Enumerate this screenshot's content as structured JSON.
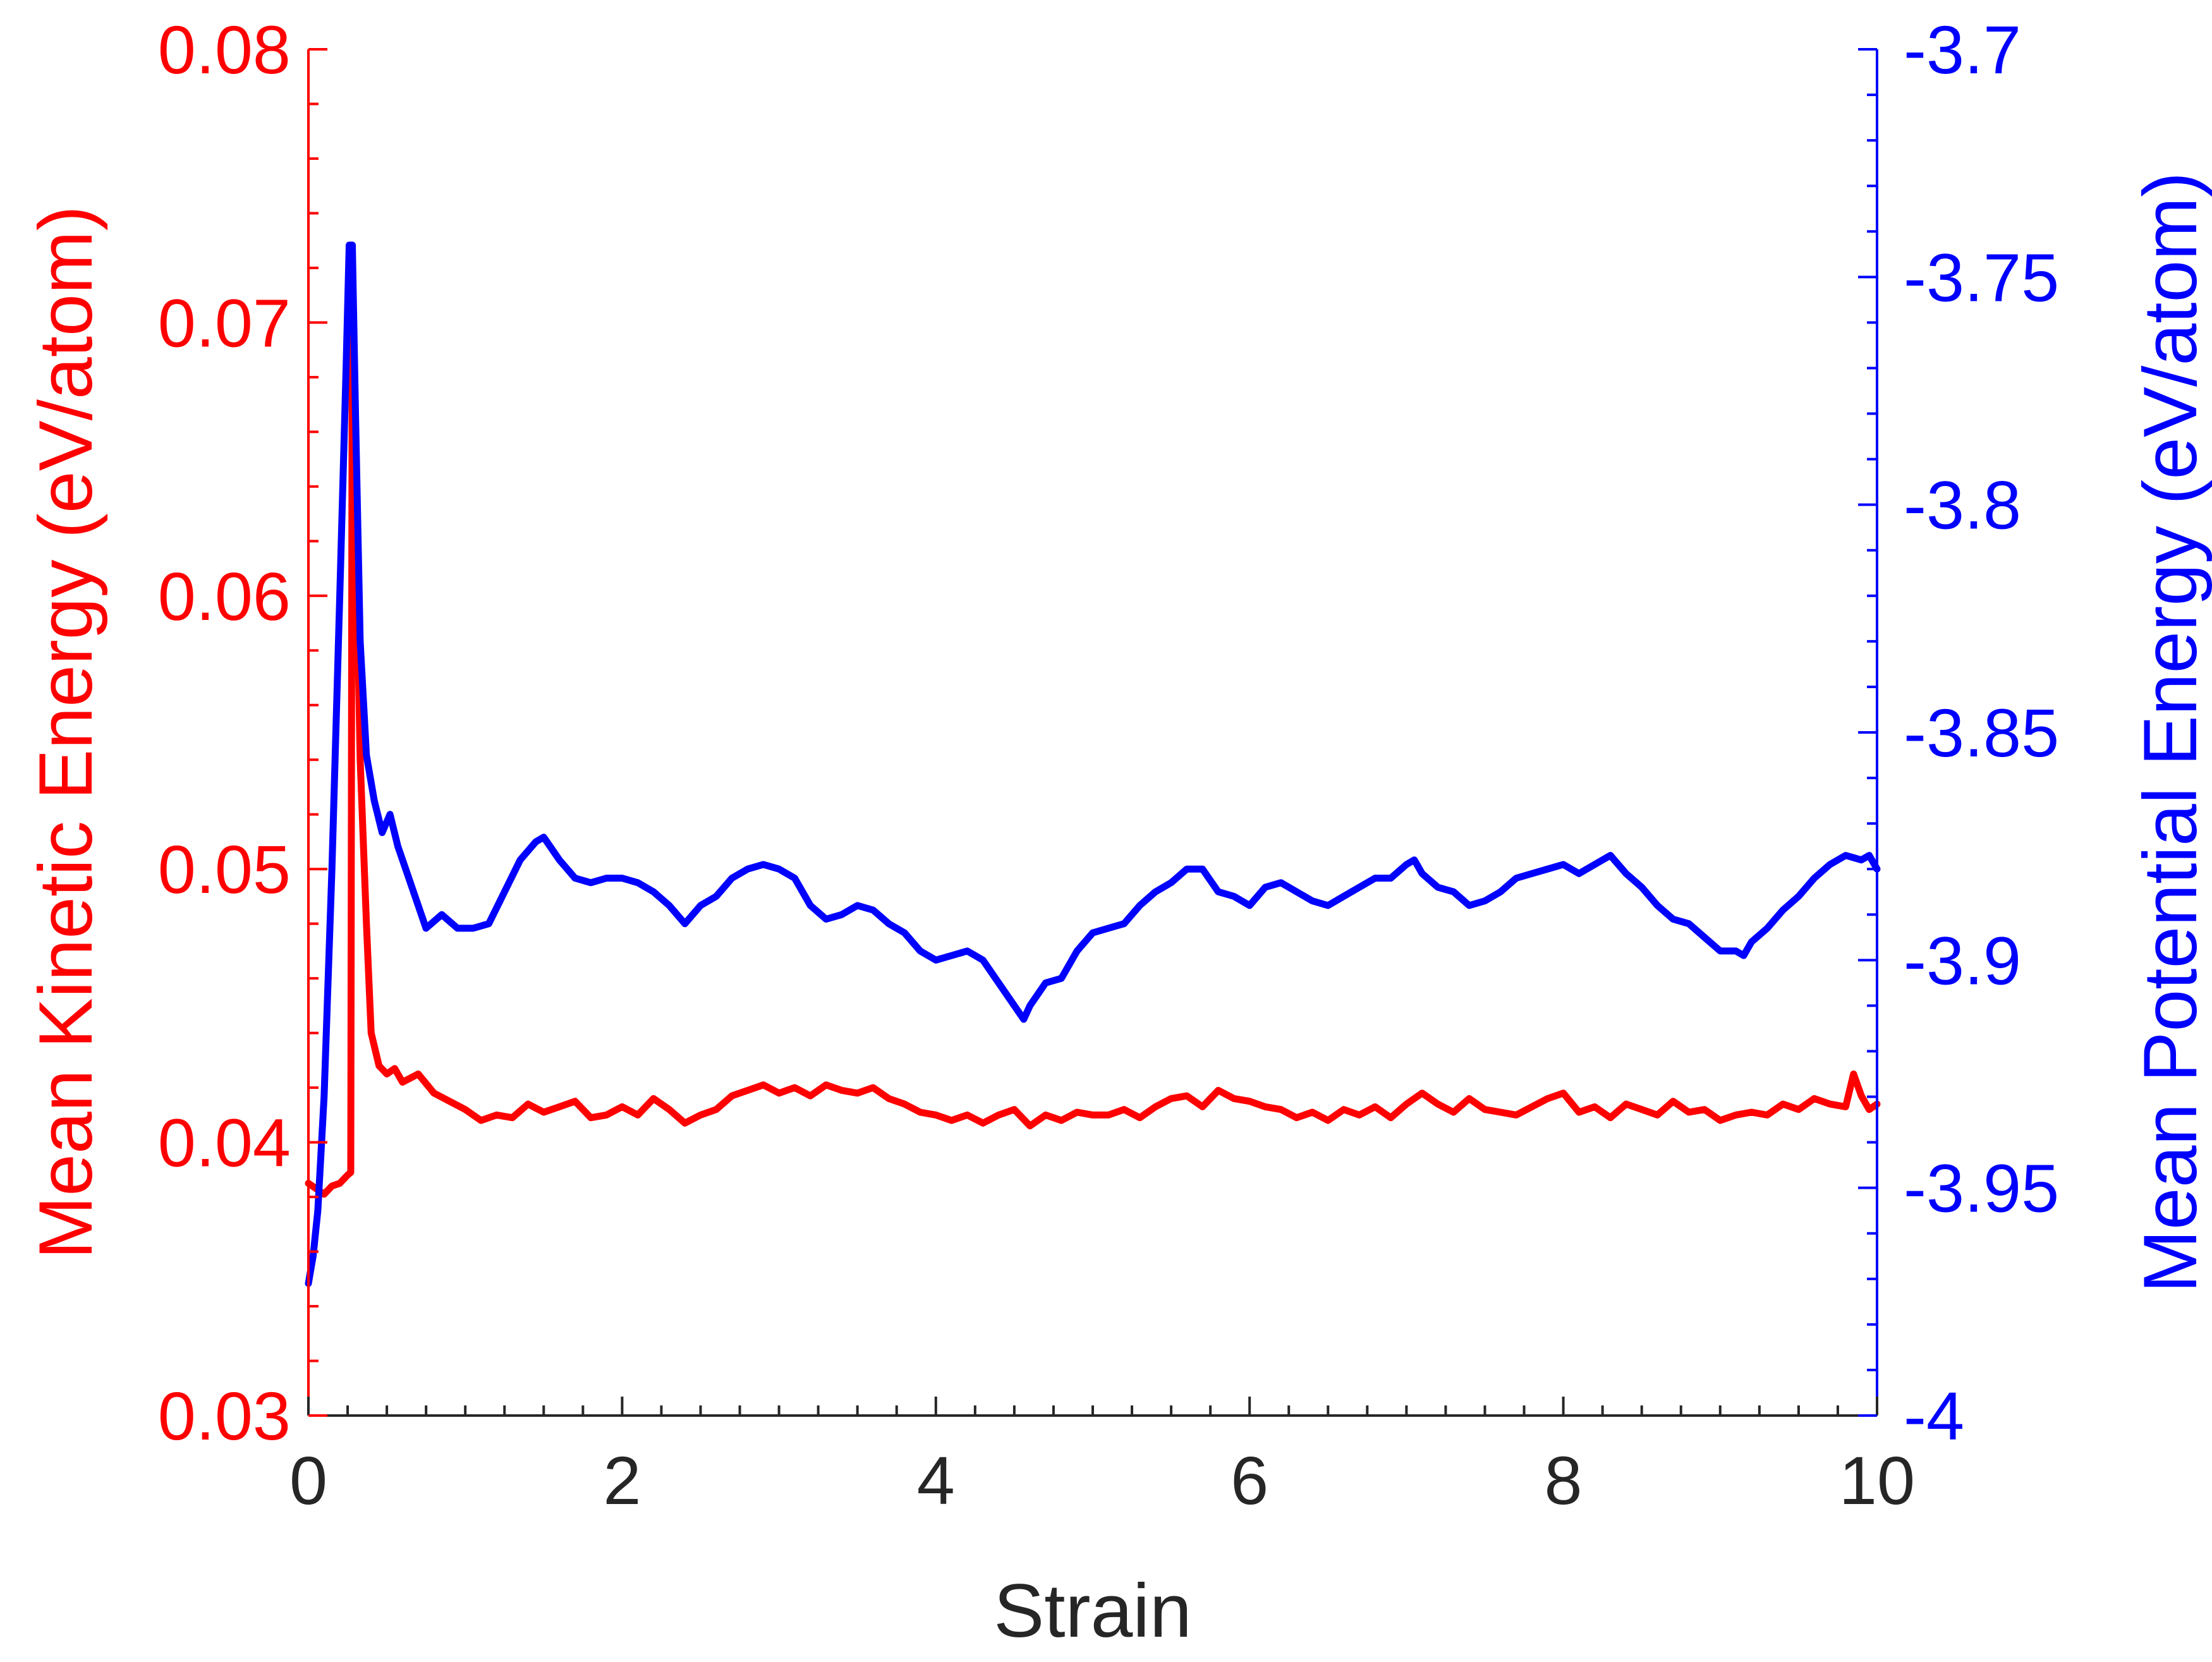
{
  "chart_data": {
    "type": "line",
    "title": "",
    "xlabel": "Strain",
    "ylabel_left": "Mean Kinetic Energy (eV/atom)",
    "ylabel_right": "Mean Potential Energy (eV/atom)",
    "xlim": [
      0,
      10
    ],
    "ylim_left": [
      0.03,
      0.08
    ],
    "ylim_right": [
      -4,
      -3.7
    ],
    "xticks": [
      {
        "value": 0,
        "label": "0"
      },
      {
        "value": 2,
        "label": "2"
      },
      {
        "value": 4,
        "label": "4"
      },
      {
        "value": 6,
        "label": "6"
      },
      {
        "value": 8,
        "label": "8"
      },
      {
        "value": 10,
        "label": "10"
      }
    ],
    "yticks_left": [
      {
        "value": 0.03,
        "label": "0.03"
      },
      {
        "value": 0.04,
        "label": "0.04"
      },
      {
        "value": 0.05,
        "label": "0.05"
      },
      {
        "value": 0.06,
        "label": "0.06"
      },
      {
        "value": 0.07,
        "label": "0.07"
      },
      {
        "value": 0.08,
        "label": "0.08"
      }
    ],
    "yticks_right": [
      {
        "value": -4,
        "label": "-4"
      },
      {
        "value": -3.95,
        "label": "-3.95"
      },
      {
        "value": -3.9,
        "label": "-3.9"
      },
      {
        "value": -3.85,
        "label": "-3.85"
      },
      {
        "value": -3.8,
        "label": "-3.8"
      },
      {
        "value": -3.75,
        "label": "-3.75"
      },
      {
        "value": -3.7,
        "label": "-3.7"
      }
    ],
    "grid": false,
    "legend": "none",
    "series": [
      {
        "axis": "left",
        "color": "#ff0000",
        "x": [
          0,
          0.05,
          0.1,
          0.15,
          0.2,
          0.25,
          0.27,
          0.28,
          0.3,
          0.33,
          0.37,
          0.4,
          0.45,
          0.5,
          0.55,
          0.6,
          0.7,
          0.8,
          0.9,
          1.0,
          1.1,
          1.2,
          1.3,
          1.4,
          1.5,
          1.6,
          1.7,
          1.8,
          1.9,
          2.0,
          2.1,
          2.2,
          2.3,
          2.4,
          2.5,
          2.6,
          2.7,
          2.8,
          2.9,
          3.0,
          3.1,
          3.2,
          3.3,
          3.4,
          3.5,
          3.6,
          3.7,
          3.8,
          3.9,
          4.0,
          4.1,
          4.2,
          4.3,
          4.4,
          4.5,
          4.6,
          4.7,
          4.8,
          4.9,
          5.0,
          5.1,
          5.2,
          5.3,
          5.4,
          5.5,
          5.6,
          5.7,
          5.8,
          5.9,
          6.0,
          6.1,
          6.2,
          6.3,
          6.4,
          6.5,
          6.6,
          6.7,
          6.8,
          6.9,
          7.0,
          7.1,
          7.2,
          7.3,
          7.4,
          7.5,
          7.6,
          7.7,
          7.8,
          7.9,
          8.0,
          8.1,
          8.2,
          8.3,
          8.4,
          8.5,
          8.6,
          8.7,
          8.8,
          8.9,
          9.0,
          9.1,
          9.2,
          9.3,
          9.4,
          9.5,
          9.6,
          9.7,
          9.8,
          9.85,
          9.9,
          9.95,
          10.0
        ],
        "values": [
          0.0385,
          0.0383,
          0.0381,
          0.0384,
          0.0385,
          0.0388,
          0.0389,
          0.072,
          0.063,
          0.054,
          0.048,
          0.044,
          0.0428,
          0.0425,
          0.0427,
          0.0422,
          0.0425,
          0.0418,
          0.0415,
          0.0412,
          0.0408,
          0.041,
          0.0409,
          0.0414,
          0.0411,
          0.0413,
          0.0415,
          0.0409,
          0.041,
          0.0413,
          0.041,
          0.0416,
          0.0412,
          0.0407,
          0.041,
          0.0412,
          0.0417,
          0.0419,
          0.0421,
          0.0418,
          0.042,
          0.0417,
          0.0421,
          0.0419,
          0.0418,
          0.042,
          0.0416,
          0.0414,
          0.0411,
          0.041,
          0.0408,
          0.041,
          0.0407,
          0.041,
          0.0412,
          0.0406,
          0.041,
          0.0408,
          0.0411,
          0.041,
          0.041,
          0.0412,
          0.0409,
          0.0413,
          0.0416,
          0.0417,
          0.0413,
          0.0419,
          0.0416,
          0.0415,
          0.0413,
          0.0412,
          0.0409,
          0.0411,
          0.0408,
          0.0412,
          0.041,
          0.0413,
          0.0409,
          0.0414,
          0.0418,
          0.0414,
          0.0411,
          0.0416,
          0.0412,
          0.0411,
          0.041,
          0.0413,
          0.0416,
          0.0418,
          0.0411,
          0.0413,
          0.0409,
          0.0414,
          0.0412,
          0.041,
          0.0415,
          0.0411,
          0.0412,
          0.0408,
          0.041,
          0.0411,
          0.041,
          0.0414,
          0.0412,
          0.0416,
          0.0414,
          0.0413,
          0.0425,
          0.0417,
          0.0412,
          0.0414
        ]
      },
      {
        "axis": "right",
        "color": "#0000ff",
        "x": [
          0,
          0.03,
          0.06,
          0.1,
          0.15,
          0.2,
          0.24,
          0.26,
          0.28,
          0.3,
          0.33,
          0.37,
          0.42,
          0.47,
          0.52,
          0.57,
          0.62,
          0.7,
          0.75,
          0.85,
          0.95,
          1.05,
          1.15,
          1.25,
          1.35,
          1.45,
          1.5,
          1.6,
          1.7,
          1.8,
          1.9,
          2.0,
          2.1,
          2.2,
          2.3,
          2.4,
          2.5,
          2.6,
          2.7,
          2.8,
          2.9,
          3.0,
          3.1,
          3.2,
          3.3,
          3.4,
          3.5,
          3.6,
          3.7,
          3.8,
          3.9,
          4.0,
          4.1,
          4.2,
          4.3,
          4.4,
          4.5,
          4.56,
          4.6,
          4.7,
          4.8,
          4.9,
          5.0,
          5.1,
          5.2,
          5.3,
          5.4,
          5.5,
          5.6,
          5.7,
          5.8,
          5.9,
          6.0,
          6.1,
          6.2,
          6.3,
          6.4,
          6.5,
          6.6,
          6.7,
          6.8,
          6.9,
          7.0,
          7.05,
          7.1,
          7.2,
          7.3,
          7.4,
          7.5,
          7.6,
          7.7,
          7.8,
          7.9,
          8.0,
          8.1,
          8.2,
          8.3,
          8.4,
          8.5,
          8.6,
          8.7,
          8.8,
          8.9,
          9.0,
          9.1,
          9.15,
          9.2,
          9.3,
          9.4,
          9.5,
          9.6,
          9.7,
          9.8,
          9.9,
          9.95,
          10.0
        ],
        "values": [
          -3.971,
          -3.965,
          -3.955,
          -3.93,
          -3.88,
          -3.82,
          -3.77,
          -3.743,
          -3.743,
          -3.78,
          -3.83,
          -3.855,
          -3.865,
          -3.872,
          -3.868,
          -3.875,
          -3.88,
          -3.888,
          -3.893,
          -3.89,
          -3.893,
          -3.893,
          -3.892,
          -3.885,
          -3.878,
          -3.874,
          -3.873,
          -3.878,
          -3.882,
          -3.883,
          -3.882,
          -3.882,
          -3.883,
          -3.885,
          -3.888,
          -3.892,
          -3.888,
          -3.886,
          -3.882,
          -3.88,
          -3.879,
          -3.88,
          -3.882,
          -3.888,
          -3.891,
          -3.89,
          -3.888,
          -3.889,
          -3.892,
          -3.894,
          -3.898,
          -3.9,
          -3.899,
          -3.898,
          -3.9,
          -3.905,
          -3.91,
          -3.913,
          -3.91,
          -3.905,
          -3.904,
          -3.898,
          -3.894,
          -3.893,
          -3.892,
          -3.888,
          -3.885,
          -3.883,
          -3.88,
          -3.88,
          -3.885,
          -3.886,
          -3.888,
          -3.884,
          -3.883,
          -3.885,
          -3.887,
          -3.888,
          -3.886,
          -3.884,
          -3.882,
          -3.882,
          -3.879,
          -3.878,
          -3.881,
          -3.884,
          -3.885,
          -3.888,
          -3.887,
          -3.885,
          -3.882,
          -3.881,
          -3.88,
          -3.879,
          -3.881,
          -3.879,
          -3.877,
          -3.881,
          -3.884,
          -3.888,
          -3.891,
          -3.892,
          -3.895,
          -3.898,
          -3.898,
          -3.899,
          -3.896,
          -3.893,
          -3.889,
          -3.886,
          -3.882,
          -3.879,
          -3.877,
          -3.878,
          -3.877,
          -3.88
        ]
      }
    ]
  }
}
